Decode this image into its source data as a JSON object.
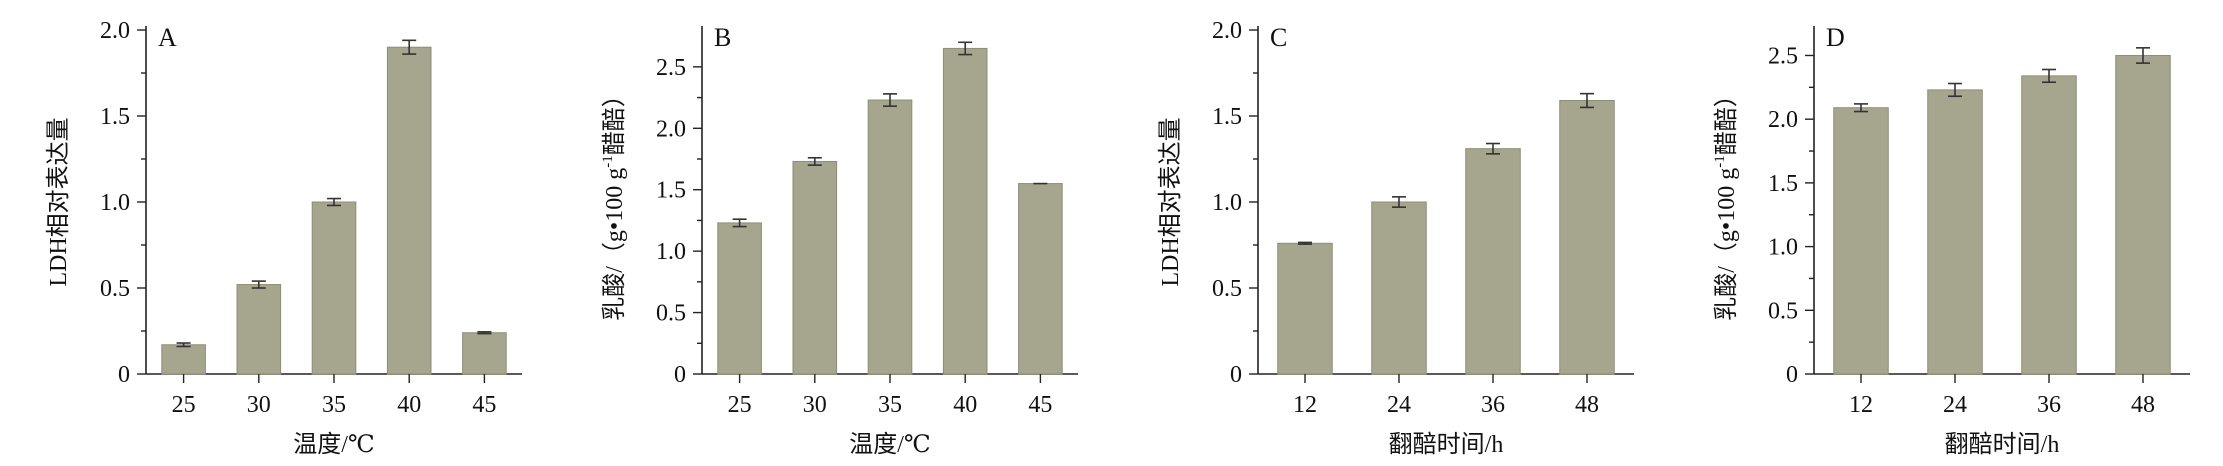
{
  "colors": {
    "bar": "#a5a68d",
    "axis": "#222222"
  },
  "chart_data": [
    {
      "panel": "A",
      "type": "bar",
      "categories": [
        "25",
        "30",
        "35",
        "40",
        "45"
      ],
      "values": [
        0.17,
        0.52,
        1.0,
        1.9,
        0.24
      ],
      "errors": [
        0.01,
        0.02,
        0.02,
        0.04,
        0.005
      ],
      "ylim": [
        0,
        2.0
      ],
      "yticks": [
        0,
        0.5,
        1.0,
        1.5,
        2.0
      ],
      "ytick_labels": [
        "0",
        "0.5",
        "1.0",
        "1.5",
        "2.0"
      ],
      "xlabel": "温度/℃",
      "ylabel": "LDH相对表达量",
      "ylabel_sup": "",
      "ylabel_tail": ""
    },
    {
      "panel": "B",
      "type": "bar",
      "categories": [
        "25",
        "30",
        "35",
        "40",
        "45"
      ],
      "values": [
        1.23,
        1.73,
        2.23,
        2.65,
        1.55
      ],
      "errors": [
        0.03,
        0.03,
        0.05,
        0.05,
        0.0
      ],
      "ylim": [
        0,
        2.8
      ],
      "yticks": [
        0,
        0.5,
        1.0,
        1.5,
        2.0,
        2.5
      ],
      "ytick_labels": [
        "0",
        "0.5",
        "1.0",
        "1.5",
        "2.0",
        "2.5"
      ],
      "xlabel": "温度/℃",
      "ylabel": "乳酸/（g•100 g",
      "ylabel_sup": "-1",
      "ylabel_tail": "醋醅）"
    },
    {
      "panel": "C",
      "type": "bar",
      "categories": [
        "12",
        "24",
        "36",
        "48"
      ],
      "values": [
        0.76,
        1.0,
        1.31,
        1.59
      ],
      "errors": [
        0.005,
        0.03,
        0.03,
        0.04
      ],
      "ylim": [
        0,
        2.0
      ],
      "yticks": [
        0,
        0.5,
        1.0,
        1.5,
        2.0
      ],
      "ytick_labels": [
        "0",
        "0.5",
        "1.0",
        "1.5",
        "2.0"
      ],
      "xlabel": "翻醅时间/h",
      "ylabel": "LDH相对表达量",
      "ylabel_sup": "",
      "ylabel_tail": ""
    },
    {
      "panel": "D",
      "type": "bar",
      "categories": [
        "12",
        "24",
        "36",
        "48"
      ],
      "values": [
        2.09,
        2.23,
        2.34,
        2.5
      ],
      "errors": [
        0.03,
        0.05,
        0.05,
        0.06
      ],
      "ylim": [
        0,
        2.7
      ],
      "yticks": [
        0,
        0.5,
        1.0,
        1.5,
        2.0,
        2.5
      ],
      "ytick_labels": [
        "0",
        "0.5",
        "1.0",
        "1.5",
        "2.0",
        "2.5"
      ],
      "xlabel": "翻醅时间/h",
      "ylabel": "乳酸/（g•100 g",
      "ylabel_sup": "-1",
      "ylabel_tail": "醋醅）"
    }
  ]
}
